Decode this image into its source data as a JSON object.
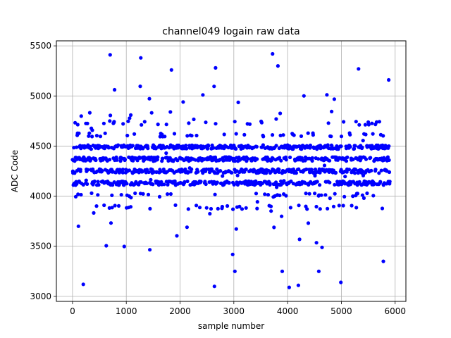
{
  "chart_data": {
    "type": "scatter",
    "title": "channel049 logain raw data",
    "xlabel": "sample number",
    "ylabel": "ADC Code",
    "xlim": [
      -300,
      6200
    ],
    "ylim": [
      2950,
      5550
    ],
    "xticks": [
      0,
      1000,
      2000,
      3000,
      4000,
      5000,
      6000
    ],
    "yticks": [
      3000,
      3500,
      4000,
      4500,
      5000,
      5500
    ],
    "grid": true,
    "marker_color": "#0000ff",
    "series": [
      {
        "n_samples": 5900,
        "x_range": [
          0,
          5900
        ],
        "dense_bands": [
          4130,
          4250,
          4370,
          4490
        ],
        "sparse_bands": [
          4010,
          3890,
          4610,
          4730
        ],
        "outliers": [
          {
            "x": 700,
            "y": 5410
          },
          {
            "x": 1270,
            "y": 5380
          },
          {
            "x": 3720,
            "y": 5420
          },
          {
            "x": 3820,
            "y": 5300
          },
          {
            "x": 1840,
            "y": 5260
          },
          {
            "x": 2660,
            "y": 5280
          },
          {
            "x": 5320,
            "y": 5270
          },
          {
            "x": 200,
            "y": 3120
          },
          {
            "x": 2640,
            "y": 3100
          },
          {
            "x": 4030,
            "y": 3090
          },
          {
            "x": 4200,
            "y": 3110
          },
          {
            "x": 4990,
            "y": 3140
          },
          {
            "x": 3020,
            "y": 3250
          },
          {
            "x": 3900,
            "y": 3250
          },
          {
            "x": 4580,
            "y": 3250
          },
          {
            "x": 5780,
            "y": 3350
          },
          {
            "x": 5880,
            "y": 5160
          }
        ]
      }
    ]
  }
}
